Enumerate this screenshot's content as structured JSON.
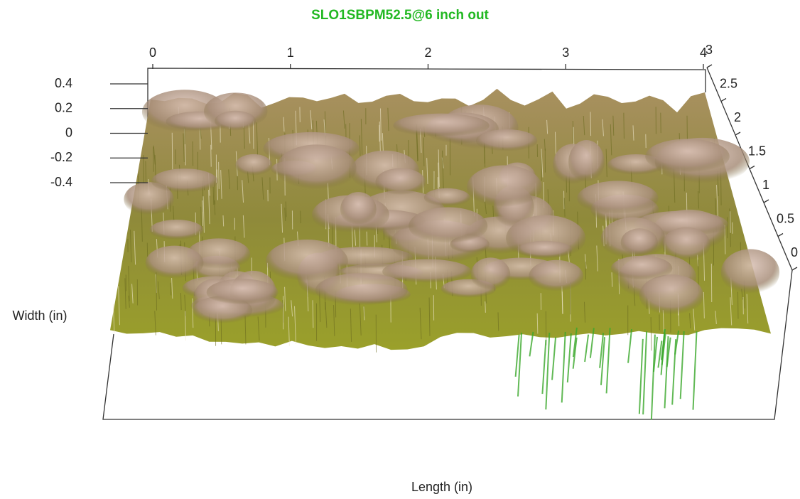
{
  "chart_data": {
    "type": "surface3d",
    "title": "SLO1SBPM52.5@6 inch out",
    "title_color": "#22b822",
    "xlabel": "Length (in)",
    "ylabel": "Width (in)",
    "xlim": [
      0,
      4
    ],
    "xticks": [
      0,
      1,
      2,
      3,
      4
    ],
    "ylim": [
      0,
      3
    ],
    "yticks": [
      0,
      0.5,
      1,
      1.5,
      2,
      2.5,
      3
    ],
    "zlim": [
      -0.4,
      0.4
    ],
    "zticks": [
      0.4,
      0.2,
      0,
      -0.2,
      -0.4
    ]
  }
}
